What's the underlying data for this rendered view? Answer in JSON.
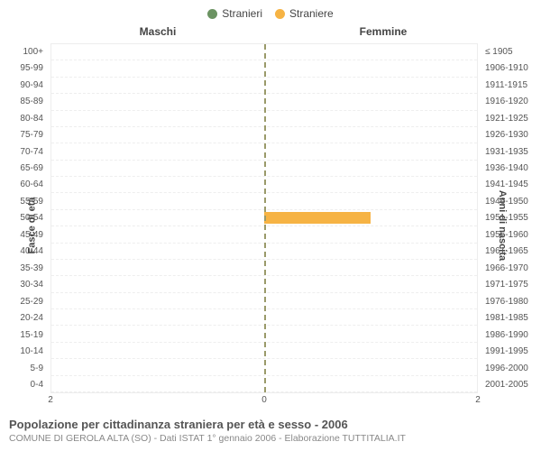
{
  "legend": {
    "male": {
      "label": "Stranieri",
      "color": "#6b9362"
    },
    "female": {
      "label": "Straniere",
      "color": "#f6b344"
    }
  },
  "subheaders": {
    "left": "Maschi",
    "right": "Femmine"
  },
  "axis_labels": {
    "left": "Fasce di età",
    "right": "Anni di nascita"
  },
  "chart": {
    "type": "pyramid-bar",
    "x_max": 2,
    "x_ticks_left": [
      2,
      0
    ],
    "x_ticks_right": [
      0,
      2
    ],
    "center_line_color": "#9a9a6a",
    "grid_color": "#ededed",
    "background_color": "#ffffff",
    "bar_color_left": "#6b9362",
    "bar_color_right": "#f6b344",
    "rows": [
      {
        "age": "100+",
        "birth": "≤ 1905",
        "male": 0,
        "female": 0
      },
      {
        "age": "95-99",
        "birth": "1906-1910",
        "male": 0,
        "female": 0
      },
      {
        "age": "90-94",
        "birth": "1911-1915",
        "male": 0,
        "female": 0
      },
      {
        "age": "85-89",
        "birth": "1916-1920",
        "male": 0,
        "female": 0
      },
      {
        "age": "80-84",
        "birth": "1921-1925",
        "male": 0,
        "female": 0
      },
      {
        "age": "75-79",
        "birth": "1926-1930",
        "male": 0,
        "female": 0
      },
      {
        "age": "70-74",
        "birth": "1931-1935",
        "male": 0,
        "female": 0
      },
      {
        "age": "65-69",
        "birth": "1936-1940",
        "male": 0,
        "female": 0
      },
      {
        "age": "60-64",
        "birth": "1941-1945",
        "male": 0,
        "female": 0
      },
      {
        "age": "55-59",
        "birth": "1946-1950",
        "male": 0,
        "female": 0
      },
      {
        "age": "50-54",
        "birth": "1951-1955",
        "male": 0,
        "female": 1
      },
      {
        "age": "45-49",
        "birth": "1956-1960",
        "male": 0,
        "female": 0
      },
      {
        "age": "40-44",
        "birth": "1961-1965",
        "male": 0,
        "female": 0
      },
      {
        "age": "35-39",
        "birth": "1966-1970",
        "male": 0,
        "female": 0
      },
      {
        "age": "30-34",
        "birth": "1971-1975",
        "male": 0,
        "female": 0
      },
      {
        "age": "25-29",
        "birth": "1976-1980",
        "male": 0,
        "female": 0
      },
      {
        "age": "20-24",
        "birth": "1981-1985",
        "male": 0,
        "female": 0
      },
      {
        "age": "15-19",
        "birth": "1986-1990",
        "male": 0,
        "female": 0
      },
      {
        "age": "10-14",
        "birth": "1991-1995",
        "male": 0,
        "female": 0
      },
      {
        "age": "5-9",
        "birth": "1996-2000",
        "male": 0,
        "female": 0
      },
      {
        "age": "0-4",
        "birth": "2001-2005",
        "male": 0,
        "female": 0
      }
    ]
  },
  "caption": {
    "line1": "Popolazione per cittadinanza straniera per età e sesso - 2006",
    "line2": "COMUNE DI GEROLA ALTA (SO) - Dati ISTAT 1° gennaio 2006 - Elaborazione TUTTITALIA.IT"
  }
}
